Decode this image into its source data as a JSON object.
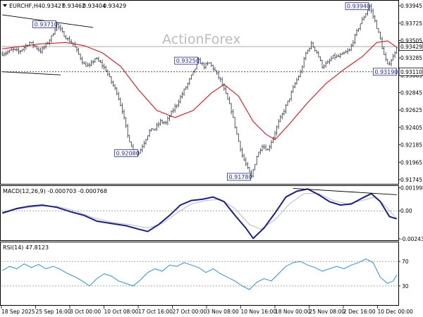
{
  "chart_data": {
    "type": "ohlc",
    "symbol_header": "EURCHF,H4",
    "ohlc_values": [
      "0.93427",
      "0.93462",
      "0.93404",
      "0.93429"
    ],
    "watermark": "ActionForex",
    "x_labels": [
      "18 Sep 2025",
      "25 Sep 16:00",
      "3 Oct 00:00",
      "10 Oct 08:00",
      "17 Oct 16:00",
      "27 Oct 00:00",
      "3 Nov 08:00",
      "10 Nov 16:00",
      "18 Nov 00:00",
      "25 Nov 08:00",
      "2 Dec 16:00",
      "10 Dec 00:00"
    ],
    "price_axis": {
      "ylim": [
        0.917,
        0.94
      ],
      "ticks": [
        "0.93945",
        "0.93725",
        "0.93505",
        "0.93285",
        "0.93065",
        "0.92845",
        "0.92625",
        "0.92405",
        "0.92185",
        "0.91965",
        "0.91745"
      ],
      "current_price_label": "0.93429",
      "level_label": "0.93110"
    },
    "price_path": [
      [
        0,
        0.9334
      ],
      [
        3,
        0.9336
      ],
      [
        6,
        0.9339
      ],
      [
        9,
        0.9336
      ],
      [
        12,
        0.9342
      ],
      [
        15,
        0.9348
      ],
      [
        18,
        0.9343
      ],
      [
        21,
        0.9337
      ],
      [
        24,
        0.9345
      ],
      [
        27,
        0.9355
      ],
      [
        30,
        0.9371
      ],
      [
        33,
        0.936
      ],
      [
        36,
        0.9352
      ],
      [
        39,
        0.9346
      ],
      [
        42,
        0.9333
      ],
      [
        45,
        0.932
      ],
      [
        48,
        0.9318
      ],
      [
        51,
        0.9328
      ],
      [
        54,
        0.9322
      ],
      [
        57,
        0.9313
      ],
      [
        60,
        0.9298
      ],
      [
        63,
        0.9285
      ],
      [
        66,
        0.9262
      ],
      [
        69,
        0.923
      ],
      [
        72,
        0.9212
      ],
      [
        75,
        0.9208
      ],
      [
        78,
        0.9222
      ],
      [
        81,
        0.9236
      ],
      [
        84,
        0.9239
      ],
      [
        87,
        0.9248
      ],
      [
        90,
        0.9246
      ],
      [
        93,
        0.9259
      ],
      [
        96,
        0.927
      ],
      [
        99,
        0.9283
      ],
      [
        102,
        0.9296
      ],
      [
        105,
        0.931
      ],
      [
        108,
        0.9325
      ],
      [
        111,
        0.9318
      ],
      [
        114,
        0.9322
      ],
      [
        117,
        0.9312
      ],
      [
        120,
        0.93
      ],
      [
        123,
        0.9282
      ],
      [
        126,
        0.9262
      ],
      [
        129,
        0.9232
      ],
      [
        132,
        0.9205
      ],
      [
        135,
        0.9188
      ],
      [
        137,
        0.9178
      ],
      [
        140,
        0.9204
      ],
      [
        143,
        0.9218
      ],
      [
        146,
        0.9212
      ],
      [
        149,
        0.9228
      ],
      [
        152,
        0.9247
      ],
      [
        155,
        0.9262
      ],
      [
        158,
        0.9278
      ],
      [
        161,
        0.9296
      ],
      [
        164,
        0.931
      ],
      [
        167,
        0.9334
      ],
      [
        170,
        0.9346
      ],
      [
        173,
        0.9336
      ],
      [
        176,
        0.9318
      ],
      [
        179,
        0.9322
      ],
      [
        182,
        0.933
      ],
      [
        185,
        0.933
      ],
      [
        188,
        0.9334
      ],
      [
        191,
        0.9338
      ],
      [
        194,
        0.9356
      ],
      [
        197,
        0.9372
      ],
      [
        200,
        0.9385
      ],
      [
        202,
        0.9394
      ],
      [
        205,
        0.9375
      ],
      [
        208,
        0.9352
      ],
      [
        210,
        0.9332
      ],
      [
        212,
        0.9319
      ],
      [
        215,
        0.933
      ],
      [
        217,
        0.9343
      ]
    ],
    "ma_path": [
      [
        0,
        0.934
      ],
      [
        20,
        0.9346
      ],
      [
        35,
        0.9348
      ],
      [
        45,
        0.9344
      ],
      [
        55,
        0.9335
      ],
      [
        65,
        0.9318
      ],
      [
        75,
        0.9288
      ],
      [
        85,
        0.9262
      ],
      [
        95,
        0.9253
      ],
      [
        105,
        0.9262
      ],
      [
        115,
        0.9284
      ],
      [
        122,
        0.9295
      ],
      [
        130,
        0.928
      ],
      [
        138,
        0.9248
      ],
      [
        145,
        0.9232
      ],
      [
        150,
        0.9225
      ],
      [
        158,
        0.9245
      ],
      [
        168,
        0.9272
      ],
      [
        178,
        0.9296
      ],
      [
        188,
        0.9314
      ],
      [
        198,
        0.933
      ],
      [
        206,
        0.9348
      ],
      [
        212,
        0.935
      ],
      [
        217,
        0.9342
      ]
    ],
    "annotations": [
      {
        "label": "0.93710",
        "bar": 30,
        "price": 0.9371,
        "pos": "left"
      },
      {
        "label": "0.93940",
        "bar": 202,
        "price": 0.9394,
        "pos": "left"
      },
      {
        "label": "0.93250",
        "bar": 108,
        "price": 0.9325,
        "pos": "left"
      },
      {
        "label": "0.93190",
        "bar": 212,
        "price": 0.9319,
        "pos": "below"
      },
      {
        "label": "0.92080",
        "bar": 75,
        "price": 0.9208,
        "pos": "left"
      },
      {
        "label": "0.91780",
        "bar": 137,
        "price": 0.9178,
        "pos": "left"
      }
    ],
    "trendlines": [
      {
        "from": [
          0,
          0.9383
        ],
        "to": [
          50,
          0.9367
        ]
      },
      {
        "from": [
          0,
          0.9311
        ],
        "to": [
          32,
          0.9307
        ]
      }
    ],
    "horizontal_level": 0.9311,
    "macd": {
      "label": "MACD(12,26,9) -0.000703 -0.000768",
      "ylim": [
        -0.0025,
        0.0021
      ],
      "ticks": [
        "0.001998",
        "0.00",
        "-0.002434"
      ],
      "macd_path": [
        [
          0,
          -0.0002
        ],
        [
          8,
          0.0002
        ],
        [
          15,
          0.0004
        ],
        [
          22,
          0.0005
        ],
        [
          30,
          0.0003
        ],
        [
          38,
          -0.0001
        ],
        [
          45,
          -0.0004
        ],
        [
          52,
          -0.0009
        ],
        [
          60,
          -0.0011
        ],
        [
          68,
          -0.0013
        ],
        [
          75,
          -0.0016
        ],
        [
          80,
          -0.0018
        ],
        [
          86,
          -0.0012
        ],
        [
          92,
          -0.0004
        ],
        [
          98,
          0.0005
        ],
        [
          104,
          0.0009
        ],
        [
          110,
          0.001
        ],
        [
          116,
          0.0012
        ],
        [
          122,
          0.0008
        ],
        [
          128,
          -0.0004
        ],
        [
          134,
          -0.0015
        ],
        [
          138,
          -0.0024
        ],
        [
          144,
          -0.0015
        ],
        [
          150,
          -0.0002
        ],
        [
          156,
          0.0012
        ],
        [
          162,
          0.0017
        ],
        [
          168,
          0.0019
        ],
        [
          174,
          0.0014
        ],
        [
          180,
          0.0008
        ],
        [
          186,
          0.0005
        ],
        [
          192,
          0.0006
        ],
        [
          198,
          0.0011
        ],
        [
          203,
          0.0015
        ],
        [
          208,
          0.0008
        ],
        [
          213,
          -0.0005
        ],
        [
          217,
          -0.0007
        ]
      ],
      "signal_path": [
        [
          0,
          -0.0001
        ],
        [
          10,
          0.0002
        ],
        [
          20,
          0.0004
        ],
        [
          30,
          0.0004
        ],
        [
          40,
          0.0
        ],
        [
          50,
          -0.0006
        ],
        [
          60,
          -0.001
        ],
        [
          70,
          -0.0012
        ],
        [
          80,
          -0.0015
        ],
        [
          88,
          -0.0011
        ],
        [
          96,
          -0.0002
        ],
        [
          104,
          0.0006
        ],
        [
          112,
          0.0009
        ],
        [
          120,
          0.001
        ],
        [
          128,
          0.0002
        ],
        [
          136,
          -0.0012
        ],
        [
          142,
          -0.0016
        ],
        [
          150,
          -0.0008
        ],
        [
          158,
          0.0006
        ],
        [
          166,
          0.0015
        ],
        [
          174,
          0.0015
        ],
        [
          182,
          0.0009
        ],
        [
          190,
          0.0006
        ],
        [
          198,
          0.0009
        ],
        [
          205,
          0.0012
        ],
        [
          211,
          0.0004
        ],
        [
          217,
          -0.0007
        ]
      ],
      "trendline": {
        "from": [
          160,
          0.00195
        ],
        "to": [
          217,
          0.0014
        ]
      }
    },
    "rsi": {
      "label": "RSI(14) 47.8123",
      "ylim": [
        0,
        100
      ],
      "ticks": [
        "70",
        "30"
      ],
      "levels": [
        70,
        30
      ],
      "rsi_path": [
        [
          0,
          55
        ],
        [
          4,
          62
        ],
        [
          8,
          58
        ],
        [
          12,
          66
        ],
        [
          16,
          60
        ],
        [
          20,
          65
        ],
        [
          24,
          58
        ],
        [
          28,
          62
        ],
        [
          32,
          57
        ],
        [
          36,
          50
        ],
        [
          40,
          45
        ],
        [
          44,
          38
        ],
        [
          48,
          30
        ],
        [
          52,
          42
        ],
        [
          56,
          50
        ],
        [
          60,
          46
        ],
        [
          64,
          38
        ],
        [
          68,
          34
        ],
        [
          72,
          30
        ],
        [
          76,
          40
        ],
        [
          80,
          52
        ],
        [
          84,
          58
        ],
        [
          88,
          54
        ],
        [
          92,
          64
        ],
        [
          96,
          62
        ],
        [
          100,
          68
        ],
        [
          104,
          64
        ],
        [
          108,
          60
        ],
        [
          112,
          52
        ],
        [
          116,
          58
        ],
        [
          120,
          50
        ],
        [
          124,
          44
        ],
        [
          128,
          38
        ],
        [
          132,
          30
        ],
        [
          136,
          24
        ],
        [
          140,
          36
        ],
        [
          144,
          42
        ],
        [
          148,
          38
        ],
        [
          152,
          50
        ],
        [
          156,
          62
        ],
        [
          160,
          68
        ],
        [
          164,
          70
        ],
        [
          168,
          64
        ],
        [
          172,
          60
        ],
        [
          176,
          54
        ],
        [
          180,
          58
        ],
        [
          184,
          62
        ],
        [
          188,
          58
        ],
        [
          192,
          64
        ],
        [
          196,
          68
        ],
        [
          200,
          74
        ],
        [
          204,
          68
        ],
        [
          208,
          44
        ],
        [
          212,
          34
        ],
        [
          215,
          38
        ],
        [
          217,
          48
        ]
      ]
    }
  }
}
